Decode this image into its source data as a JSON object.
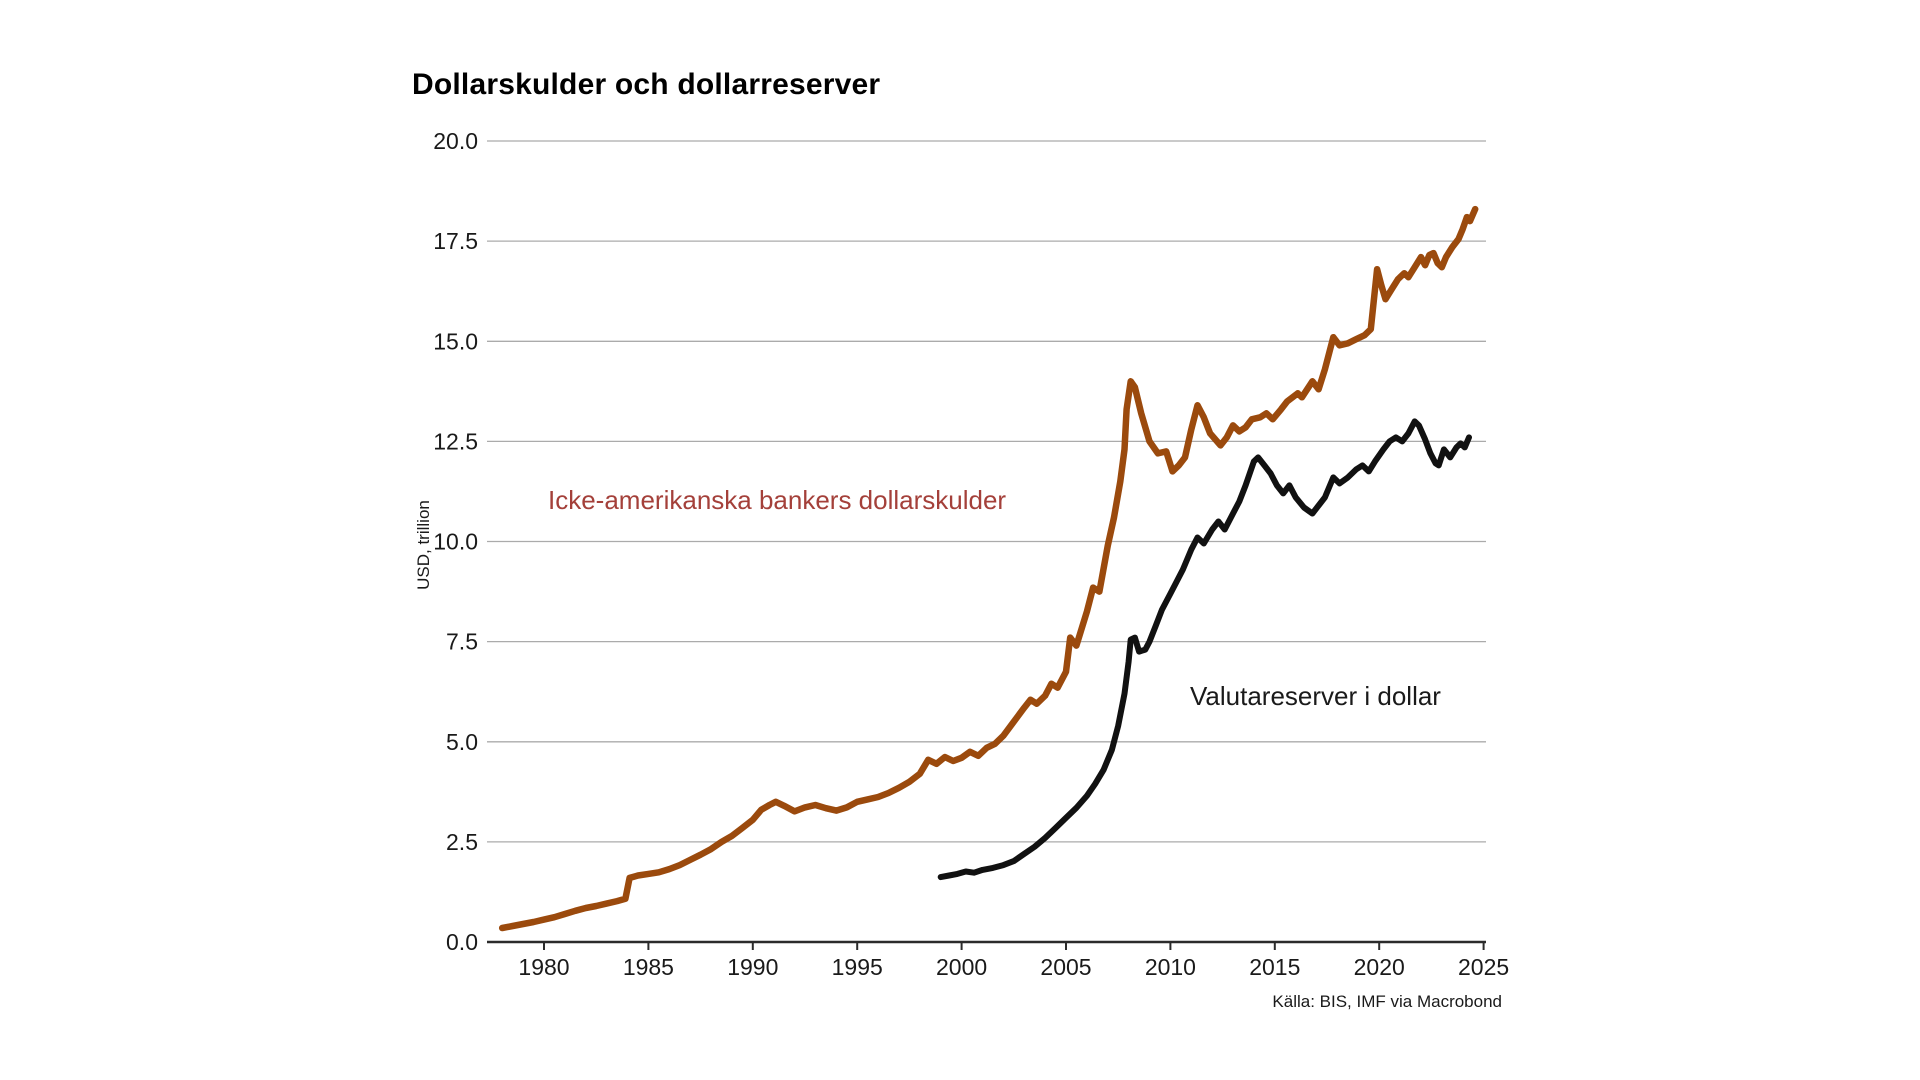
{
  "chart_data": {
    "type": "line",
    "title": "Dollarskulder och dollarreserver",
    "ylabel": "USD, trillion",
    "xlabel": "",
    "source": "Källa: BIS, IMF via Macrobond",
    "ylim": [
      0,
      20
    ],
    "xlim": [
      1977.3,
      2025.5
    ],
    "grid": "horizontal-gray",
    "legend_position": "inline-annotations",
    "y_ticks": [
      0,
      2.5,
      5,
      7.5,
      10,
      12.5,
      15,
      17.5,
      20
    ],
    "y_tick_labels": [
      "0.0",
      "2.5",
      "5.0",
      "7.5",
      "10.0",
      "12.5",
      "15.0",
      "17.5",
      "20.0"
    ],
    "x_ticks": [
      1980,
      1985,
      1990,
      1995,
      2000,
      2005,
      2010,
      2015,
      2020,
      2025
    ],
    "x_tick_labels": [
      "1980",
      "1985",
      "1990",
      "1995",
      "2000",
      "2005",
      "2010",
      "2015",
      "2020",
      "2025"
    ],
    "colors": {
      "grid": "#ababab",
      "axis": "#2b2b2b",
      "tick_text": "#1a1a1a"
    },
    "series": [
      {
        "name": "Icke-amerikanska bankers dollarskulder",
        "color": "#9b4a0d",
        "label_color": "#a4403a",
        "points": [
          [
            1978,
            0.35
          ],
          [
            1978.5,
            0.4
          ],
          [
            1979,
            0.45
          ],
          [
            1979.5,
            0.5
          ],
          [
            1980,
            0.56
          ],
          [
            1980.5,
            0.62
          ],
          [
            1981,
            0.7
          ],
          [
            1981.5,
            0.78
          ],
          [
            1982,
            0.85
          ],
          [
            1982.5,
            0.9
          ],
          [
            1983,
            0.96
          ],
          [
            1983.5,
            1.02
          ],
          [
            1983.9,
            1.08
          ],
          [
            1984.1,
            1.6
          ],
          [
            1984.5,
            1.66
          ],
          [
            1985,
            1.7
          ],
          [
            1985.5,
            1.74
          ],
          [
            1986,
            1.82
          ],
          [
            1986.5,
            1.92
          ],
          [
            1987,
            2.05
          ],
          [
            1987.5,
            2.18
          ],
          [
            1988,
            2.32
          ],
          [
            1988.5,
            2.5
          ],
          [
            1989,
            2.65
          ],
          [
            1989.5,
            2.85
          ],
          [
            1990,
            3.05
          ],
          [
            1990.4,
            3.3
          ],
          [
            1990.8,
            3.42
          ],
          [
            1991.1,
            3.5
          ],
          [
            1991.5,
            3.4
          ],
          [
            1992,
            3.26
          ],
          [
            1992.5,
            3.36
          ],
          [
            1993,
            3.42
          ],
          [
            1993.5,
            3.34
          ],
          [
            1994,
            3.28
          ],
          [
            1994.5,
            3.36
          ],
          [
            1995,
            3.5
          ],
          [
            1995.5,
            3.56
          ],
          [
            1996,
            3.62
          ],
          [
            1996.5,
            3.72
          ],
          [
            1997,
            3.85
          ],
          [
            1997.5,
            4.0
          ],
          [
            1998,
            4.2
          ],
          [
            1998.4,
            4.55
          ],
          [
            1998.8,
            4.45
          ],
          [
            1999.2,
            4.62
          ],
          [
            1999.6,
            4.52
          ],
          [
            2000,
            4.6
          ],
          [
            2000.4,
            4.75
          ],
          [
            2000.8,
            4.65
          ],
          [
            2001.2,
            4.85
          ],
          [
            2001.6,
            4.95
          ],
          [
            2002,
            5.15
          ],
          [
            2002.5,
            5.5
          ],
          [
            2003,
            5.85
          ],
          [
            2003.3,
            6.05
          ],
          [
            2003.6,
            5.95
          ],
          [
            2004,
            6.15
          ],
          [
            2004.3,
            6.45
          ],
          [
            2004.6,
            6.35
          ],
          [
            2005,
            6.75
          ],
          [
            2005.2,
            7.6
          ],
          [
            2005.5,
            7.4
          ],
          [
            2006,
            8.25
          ],
          [
            2006.3,
            8.85
          ],
          [
            2006.6,
            8.75
          ],
          [
            2007,
            9.9
          ],
          [
            2007.3,
            10.6
          ],
          [
            2007.6,
            11.5
          ],
          [
            2007.8,
            12.3
          ],
          [
            2007.9,
            13.3
          ],
          [
            2008.1,
            14.0
          ],
          [
            2008.3,
            13.85
          ],
          [
            2008.6,
            13.2
          ],
          [
            2009,
            12.5
          ],
          [
            2009.4,
            12.2
          ],
          [
            2009.8,
            12.25
          ],
          [
            2010.1,
            11.75
          ],
          [
            2010.4,
            11.9
          ],
          [
            2010.7,
            12.1
          ],
          [
            2011,
            12.8
          ],
          [
            2011.3,
            13.4
          ],
          [
            2011.6,
            13.1
          ],
          [
            2011.9,
            12.7
          ],
          [
            2012.4,
            12.4
          ],
          [
            2012.7,
            12.6
          ],
          [
            2013,
            12.9
          ],
          [
            2013.3,
            12.75
          ],
          [
            2013.6,
            12.85
          ],
          [
            2013.9,
            13.05
          ],
          [
            2014.3,
            13.1
          ],
          [
            2014.6,
            13.2
          ],
          [
            2014.9,
            13.05
          ],
          [
            2015.3,
            13.3
          ],
          [
            2015.6,
            13.5
          ],
          [
            2016.1,
            13.7
          ],
          [
            2016.3,
            13.6
          ],
          [
            2016.8,
            14.0
          ],
          [
            2017.1,
            13.8
          ],
          [
            2017.4,
            14.3
          ],
          [
            2017.8,
            15.1
          ],
          [
            2018.1,
            14.9
          ],
          [
            2018.5,
            14.95
          ],
          [
            2018.9,
            15.05
          ],
          [
            2019.3,
            15.15
          ],
          [
            2019.6,
            15.3
          ],
          [
            2019.9,
            16.8
          ],
          [
            2020.1,
            16.4
          ],
          [
            2020.3,
            16.05
          ],
          [
            2020.6,
            16.3
          ],
          [
            2020.9,
            16.55
          ],
          [
            2021.2,
            16.7
          ],
          [
            2021.4,
            16.6
          ],
          [
            2021.7,
            16.85
          ],
          [
            2022,
            17.1
          ],
          [
            2022.2,
            16.9
          ],
          [
            2022.4,
            17.15
          ],
          [
            2022.6,
            17.2
          ],
          [
            2022.8,
            16.95
          ],
          [
            2023,
            16.85
          ],
          [
            2023.2,
            17.1
          ],
          [
            2023.5,
            17.35
          ],
          [
            2023.8,
            17.55
          ],
          [
            2024,
            17.8
          ],
          [
            2024.2,
            18.1
          ],
          [
            2024.35,
            18.0
          ],
          [
            2024.6,
            18.3
          ]
        ]
      },
      {
        "name": "Valutareserver i dollar",
        "color": "#111111",
        "label_color": "#1a1a1a",
        "points": [
          [
            1999,
            1.62
          ],
          [
            1999.4,
            1.66
          ],
          [
            1999.8,
            1.7
          ],
          [
            2000.2,
            1.76
          ],
          [
            2000.6,
            1.73
          ],
          [
            2001,
            1.8
          ],
          [
            2001.5,
            1.85
          ],
          [
            2002,
            1.92
          ],
          [
            2002.5,
            2.02
          ],
          [
            2003,
            2.2
          ],
          [
            2003.5,
            2.38
          ],
          [
            2004,
            2.6
          ],
          [
            2004.5,
            2.85
          ],
          [
            2005,
            3.1
          ],
          [
            2005.5,
            3.35
          ],
          [
            2006,
            3.65
          ],
          [
            2006.4,
            3.95
          ],
          [
            2006.8,
            4.3
          ],
          [
            2007.2,
            4.8
          ],
          [
            2007.5,
            5.4
          ],
          [
            2007.8,
            6.2
          ],
          [
            2008,
            7.0
          ],
          [
            2008.1,
            7.55
          ],
          [
            2008.3,
            7.6
          ],
          [
            2008.5,
            7.25
          ],
          [
            2008.8,
            7.3
          ],
          [
            2009,
            7.5
          ],
          [
            2009.3,
            7.9
          ],
          [
            2009.6,
            8.3
          ],
          [
            2010,
            8.7
          ],
          [
            2010.3,
            9.0
          ],
          [
            2010.6,
            9.3
          ],
          [
            2011,
            9.8
          ],
          [
            2011.3,
            10.1
          ],
          [
            2011.6,
            9.95
          ],
          [
            2012,
            10.3
          ],
          [
            2012.3,
            10.5
          ],
          [
            2012.6,
            10.3
          ],
          [
            2013,
            10.7
          ],
          [
            2013.3,
            11.0
          ],
          [
            2013.6,
            11.4
          ],
          [
            2014,
            12.0
          ],
          [
            2014.2,
            12.1
          ],
          [
            2014.5,
            11.9
          ],
          [
            2014.8,
            11.7
          ],
          [
            2015.1,
            11.4
          ],
          [
            2015.4,
            11.2
          ],
          [
            2015.7,
            11.4
          ],
          [
            2016,
            11.1
          ],
          [
            2016.4,
            10.85
          ],
          [
            2016.8,
            10.7
          ],
          [
            2017.1,
            10.9
          ],
          [
            2017.4,
            11.1
          ],
          [
            2017.8,
            11.6
          ],
          [
            2018.1,
            11.45
          ],
          [
            2018.5,
            11.6
          ],
          [
            2018.9,
            11.8
          ],
          [
            2019.2,
            11.9
          ],
          [
            2019.5,
            11.75
          ],
          [
            2019.8,
            12.0
          ],
          [
            2020.2,
            12.3
          ],
          [
            2020.5,
            12.5
          ],
          [
            2020.8,
            12.6
          ],
          [
            2021.1,
            12.5
          ],
          [
            2021.4,
            12.7
          ],
          [
            2021.7,
            13.0
          ],
          [
            2021.9,
            12.9
          ],
          [
            2022.2,
            12.55
          ],
          [
            2022.45,
            12.2
          ],
          [
            2022.7,
            11.95
          ],
          [
            2022.85,
            11.9
          ],
          [
            2023.1,
            12.3
          ],
          [
            2023.4,
            12.1
          ],
          [
            2023.7,
            12.35
          ],
          [
            2023.9,
            12.45
          ],
          [
            2024.1,
            12.35
          ],
          [
            2024.3,
            12.6
          ]
        ]
      }
    ]
  }
}
